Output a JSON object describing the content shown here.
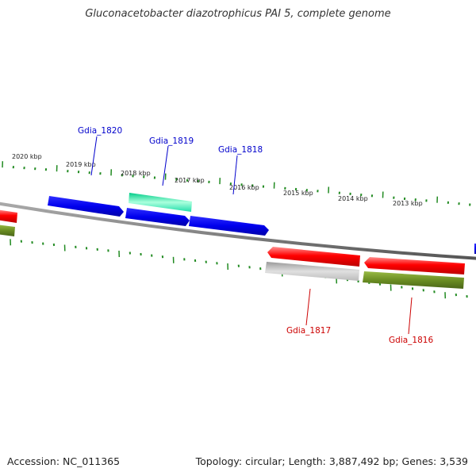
{
  "title": "Gluconacetobacter diazotrophicus PAI 5, complete genome",
  "footer": {
    "accession": "Accession: NC_011365",
    "summary": "Topology: circular; Length: 3,887,492 bp; Genes: 3,539"
  },
  "colors": {
    "backbone": "#808080",
    "ticks": "#228B22",
    "forward_label": "#0000CC",
    "reverse_label": "#CC0000"
  },
  "scale": {
    "unit": "kbp",
    "labels": [
      "2020 kbp",
      "2019 kbp",
      "2018 kbp",
      "2017 kbp",
      "2016 kbp",
      "2015 kbp",
      "2014 kbp",
      "2013 kbp"
    ]
  },
  "genes": {
    "forward": [
      {
        "label": "Gdia_1820",
        "color": "#0000EE"
      },
      {
        "label": "Gdia_1819",
        "color": "#22EEAA"
      },
      {
        "label": "Gdia_1818",
        "color": "#0000EE"
      }
    ],
    "reverse": [
      {
        "label": "Gdia_1817",
        "color": "#EE0000"
      },
      {
        "label": "Gdia_1816",
        "color": "#EE0000"
      }
    ]
  }
}
